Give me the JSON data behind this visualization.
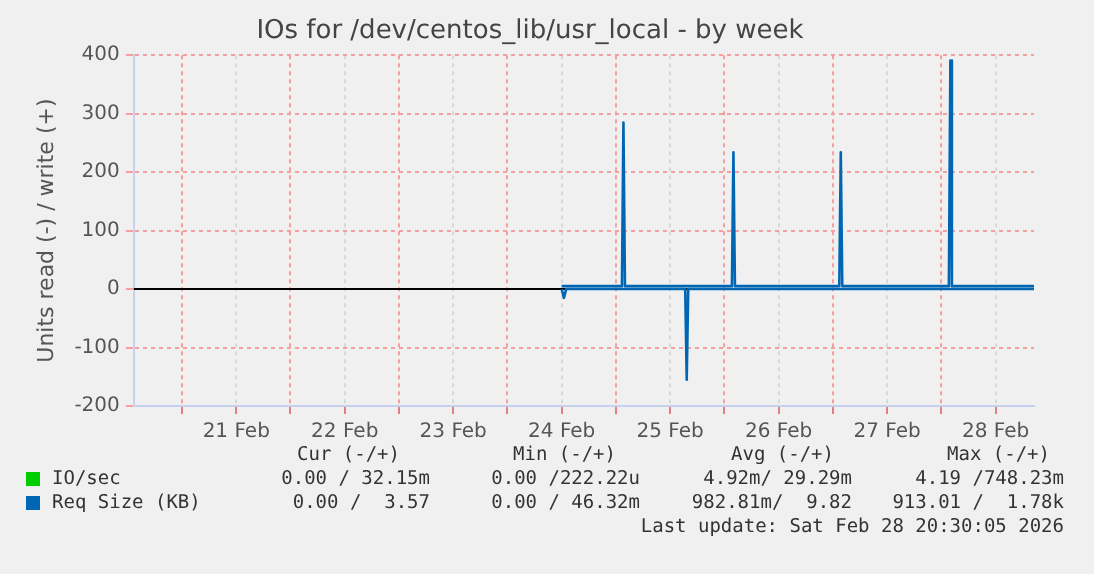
{
  "chart_data": {
    "type": "line",
    "title": "IOs for /dev/centos_lib/usr_local - by week",
    "ylabel": "Units read (-) / write (+)",
    "xlim": [
      "2026-02-20T13:20",
      "2026-02-28T20:30"
    ],
    "xticks": [
      {
        "value": "2026-02-21T00:00",
        "label": null
      },
      {
        "value": "2026-02-21T12:00",
        "label": "21 Feb"
      },
      {
        "value": "2026-02-22T00:00",
        "label": null
      },
      {
        "value": "2026-02-22T12:00",
        "label": "22 Feb"
      },
      {
        "value": "2026-02-23T00:00",
        "label": null
      },
      {
        "value": "2026-02-23T12:00",
        "label": "23 Feb"
      },
      {
        "value": "2026-02-24T00:00",
        "label": null
      },
      {
        "value": "2026-02-24T12:00",
        "label": "24 Feb"
      },
      {
        "value": "2026-02-25T00:00",
        "label": null
      },
      {
        "value": "2026-02-25T12:00",
        "label": "25 Feb"
      },
      {
        "value": "2026-02-26T00:00",
        "label": null
      },
      {
        "value": "2026-02-26T12:00",
        "label": "26 Feb"
      },
      {
        "value": "2026-02-27T00:00",
        "label": null
      },
      {
        "value": "2026-02-27T12:00",
        "label": "27 Feb"
      },
      {
        "value": "2026-02-28T00:00",
        "label": null
      },
      {
        "value": "2026-02-28T12:00",
        "label": "28 Feb"
      }
    ],
    "ylim": [
      -200,
      400
    ],
    "yticks": [
      -200,
      -100,
      0,
      100,
      200,
      300,
      400
    ],
    "grid": true,
    "legend": "bottom",
    "marker": "none",
    "line_style": "solid",
    "ref_lines": [
      {
        "axis": "y",
        "value": 0,
        "color": "#000000"
      }
    ],
    "series": [
      {
        "name": "IO/sec",
        "color": "#00cc00"
      },
      {
        "name": "Req Size (KB)",
        "color": "#0066b3",
        "x": [
          "2026-02-24T12:00",
          "2026-02-25T01:20",
          "2026-02-25T01:40",
          "2026-02-25T02:00",
          "2026-02-26T01:40",
          "2026-02-26T02:00",
          "2026-02-26T02:20",
          "2026-02-27T01:25",
          "2026-02-27T01:45",
          "2026-02-27T02:05",
          "2026-02-28T01:40",
          "2026-02-28T02:00",
          "2026-02-28T02:20",
          "2026-02-28T20:30"
        ],
        "values": [
          5,
          5,
          285,
          5,
          5,
          234,
          5,
          5,
          234,
          5,
          5,
          391,
          5,
          5
        ]
      },
      {
        "color": "#0066b3",
        "x": [
          "2026-02-24T12:00",
          "2026-02-24T12:30",
          "2026-02-24T13:00",
          "2026-02-25T15:20",
          "2026-02-25T15:40",
          "2026-02-25T16:00",
          "2026-02-28T20:30"
        ],
        "values": [
          0,
          -15,
          0,
          0,
          -155,
          0,
          0
        ]
      }
    ],
    "annotations": [
      "Cur (-/+)",
      "Min (-/+)",
      "Avg (-/+)",
      "Max (-/+)",
      "0.00 / 32.15m",
      "0.00 /222.22u",
      "4.92m/ 29.29m",
      "4.19 /748.23m",
      "0.00 /  3.57",
      "0.00 / 46.32m",
      "982.81m/  9.82",
      "913.01 /  1.78k",
      "Last update: Sat Feb 28 20:30:05 2026"
    ]
  }
}
